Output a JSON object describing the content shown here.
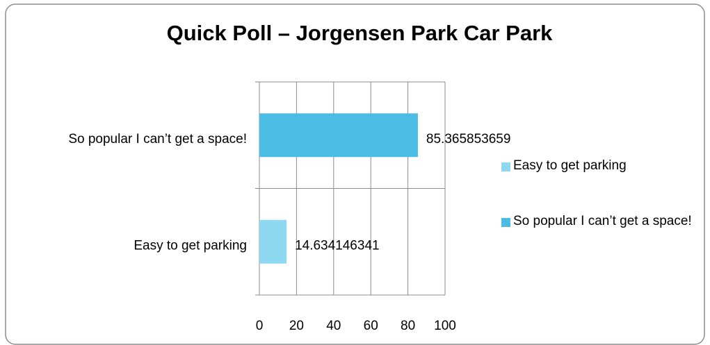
{
  "chart_data": {
    "type": "hbar",
    "title": "Quick Poll – Jorgensen Park Car Park",
    "categories": [
      "Easy to get parking",
      "So popular I can’t get a space!"
    ],
    "values": [
      14.634146341,
      85.365853659
    ],
    "colors": [
      "#8ed8f2",
      "#4bbde5"
    ],
    "xlim": [
      0,
      100
    ],
    "xticks": [
      0,
      20,
      40,
      60,
      80,
      100
    ],
    "grid": true,
    "legend": "right"
  }
}
